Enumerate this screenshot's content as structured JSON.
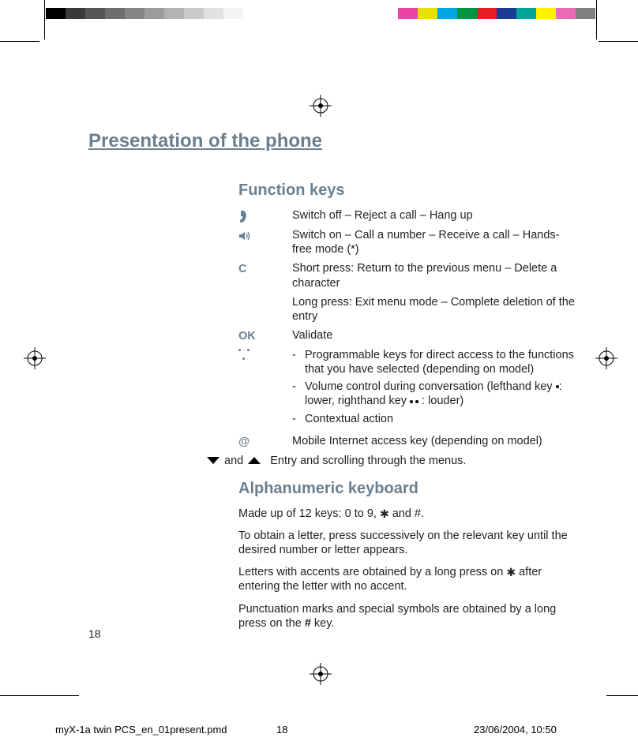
{
  "colorbars": {
    "left": [
      "#000000",
      "#3a3a3a",
      "#565656",
      "#6e6e6e",
      "#858585",
      "#9c9c9c",
      "#b3b3b3",
      "#cacaca",
      "#e1e1e1",
      "#f4f4f4",
      "#ffffff"
    ],
    "right": [
      "#ffffff",
      "#ec43a9",
      "#e7e300",
      "#00a5e3",
      "#009444",
      "#ec1c24",
      "#1a3c92",
      "#00a499",
      "#fff200",
      "#ec6ab7",
      "#808080"
    ]
  },
  "page": {
    "chapter_title": "Presentation of the phone",
    "section1_title": "Function keys",
    "rows": {
      "hangup": "Switch off – Reject a call – Hang up",
      "call": "Switch on – Call a number – Receive a call – Hands-free mode (*)",
      "c_key": "C",
      "c_desc1": "Short press: Return to the previous menu – Delete a character",
      "c_desc2": "Long press: Exit menu mode – Complete deletion of the entry",
      "ok_key": "OK",
      "ok_desc": "Validate",
      "dotsb1": "Programmable keys for direct access to the functions that you have selected (depending on model)",
      "dotsb2_pre": "Volume control during conversation (lefthand key ",
      "dotsb2_mid": ": lower, righthand key ",
      "dotsb2_post": " : louder)",
      "dotsb3": "Contextual action",
      "at_key": "@",
      "at_desc": "Mobile Internet access key (depending on model)",
      "arrows_and": "and",
      "arrows_desc": "Entry and scrolling through the menus."
    },
    "section2_title": "Alphanumeric keyboard",
    "section2": {
      "p1_pre": "Made up of 12 keys: 0 to 9, ",
      "p1_post": " and #.",
      "p2": "To obtain a letter, press successively on the relevant key until the desired number or letter appears.",
      "p3_pre": "Letters with accents are obtained by a long press on ",
      "p3_post": " after entering the letter with no accent.",
      "p4": "Punctuation marks and special symbols are obtained by a long press on the # key."
    },
    "page_number": "18"
  },
  "footer": {
    "filename": "myX-1a twin PCS_en_01present.pmd",
    "page": "18",
    "datetime": "23/06/2004, 10:50"
  },
  "colors": {
    "heading": "#6b7f8f",
    "text": "#222222"
  }
}
